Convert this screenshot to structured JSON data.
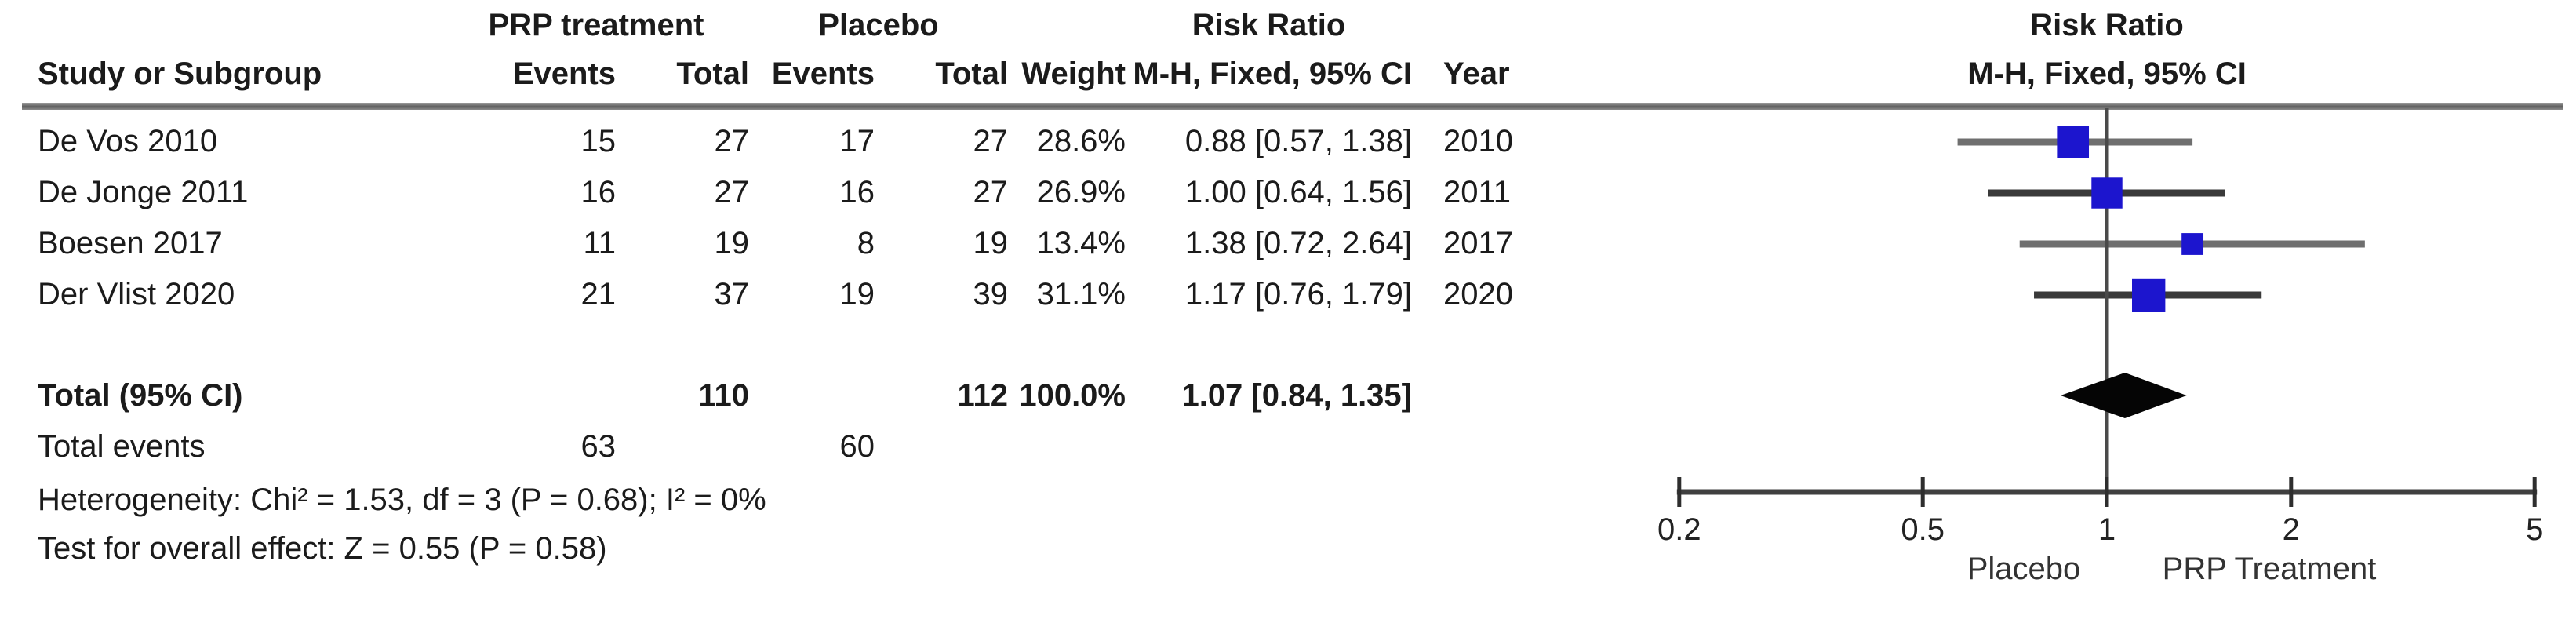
{
  "table": {
    "group_headers": {
      "prp": "PRP treatment",
      "placebo": "Placebo",
      "risk_ratio": "Risk Ratio"
    },
    "col_headers": {
      "study": "Study or Subgroup",
      "prp_events": "Events",
      "prp_total": "Total",
      "placebo_events": "Events",
      "placebo_total": "Total",
      "weight": "Weight",
      "mh_ci": "M-H, Fixed, 95% CI",
      "year": "Year"
    },
    "rows": [
      {
        "study": "De Vos 2010",
        "prp_events": "15",
        "prp_total": "27",
        "pl_events": "17",
        "pl_total": "27",
        "weight": "28.6%",
        "ci": "0.88 [0.57, 1.38]",
        "year": "2010"
      },
      {
        "study": "De Jonge 2011",
        "prp_events": "16",
        "prp_total": "27",
        "pl_events": "16",
        "pl_total": "27",
        "weight": "26.9%",
        "ci": "1.00 [0.64, 1.56]",
        "year": "2011"
      },
      {
        "study": "Boesen 2017",
        "prp_events": "11",
        "prp_total": "19",
        "pl_events": "8",
        "pl_total": "19",
        "weight": "13.4%",
        "ci": "1.38 [0.72, 2.64]",
        "year": "2017"
      },
      {
        "study": "Der Vlist 2020",
        "prp_events": "21",
        "prp_total": "37",
        "pl_events": "19",
        "pl_total": "39",
        "weight": "31.1%",
        "ci": "1.17 [0.76, 1.79]",
        "year": "2020"
      }
    ],
    "total_row": {
      "label": "Total (95% CI)",
      "prp_total": "110",
      "placebo_total": "112",
      "weight": "100.0%",
      "ci": "1.07 [0.84, 1.35]"
    },
    "total_events_row": {
      "label": "Total events",
      "prp_events": "63",
      "placebo_events": "60"
    },
    "heterogeneity": "Heterogeneity: Chi² = 1.53, df = 3 (P = 0.68); I² = 0%",
    "overall_effect": "Test for overall effect: Z = 0.55 (P = 0.58)"
  },
  "plot": {
    "header_line1": "Risk Ratio",
    "header_line2": "M-H, Fixed, 95% CI",
    "axis_label_left": "Placebo",
    "axis_label_right": "PRP Treatment",
    "square_color": "#1C15CE",
    "diamond_color": "#050505",
    "ci_line_colors": [
      "#6F6F6F",
      "#3A3A3A"
    ],
    "axis_color": "#3F3F3F"
  },
  "chart_data": {
    "type": "forest",
    "measure": "Risk Ratio",
    "method": "M-H, Fixed, 95% CI",
    "x_scale": "log",
    "axis_ticks": [
      0.2,
      0.5,
      1,
      2,
      5
    ],
    "axis_range": [
      0.2,
      5
    ],
    "null_line": 1,
    "favours_left": "Placebo",
    "favours_right": "PRP Treatment",
    "studies": [
      {
        "name": "De Vos 2010",
        "year": "2010",
        "prp_events": 15,
        "prp_total": 27,
        "placebo_events": 17,
        "placebo_total": 27,
        "weight_pct": 28.6,
        "rr": 0.88,
        "ci_low": 0.57,
        "ci_high": 1.38
      },
      {
        "name": "De Jonge 2011",
        "year": "2011",
        "prp_events": 16,
        "prp_total": 27,
        "placebo_events": 16,
        "placebo_total": 27,
        "weight_pct": 26.9,
        "rr": 1.0,
        "ci_low": 0.64,
        "ci_high": 1.56
      },
      {
        "name": "Boesen 2017",
        "year": "2017",
        "prp_events": 11,
        "prp_total": 19,
        "placebo_events": 8,
        "placebo_total": 19,
        "weight_pct": 13.4,
        "rr": 1.38,
        "ci_low": 0.72,
        "ci_high": 2.64
      },
      {
        "name": "Der Vlist 2020",
        "year": "2020",
        "prp_events": 21,
        "prp_total": 37,
        "placebo_events": 19,
        "placebo_total": 39,
        "weight_pct": 31.1,
        "rr": 1.17,
        "ci_low": 0.76,
        "ci_high": 1.79
      }
    ],
    "total": {
      "rr": 1.07,
      "ci_low": 0.84,
      "ci_high": 1.35,
      "prp_total": 110,
      "placebo_total": 112,
      "weight_pct": 100.0,
      "prp_events": 63,
      "placebo_events": 60
    },
    "heterogeneity": {
      "chi2": 1.53,
      "df": 3,
      "p": 0.68,
      "i2_pct": 0
    },
    "overall_effect": {
      "z": 0.55,
      "p": 0.58
    }
  }
}
